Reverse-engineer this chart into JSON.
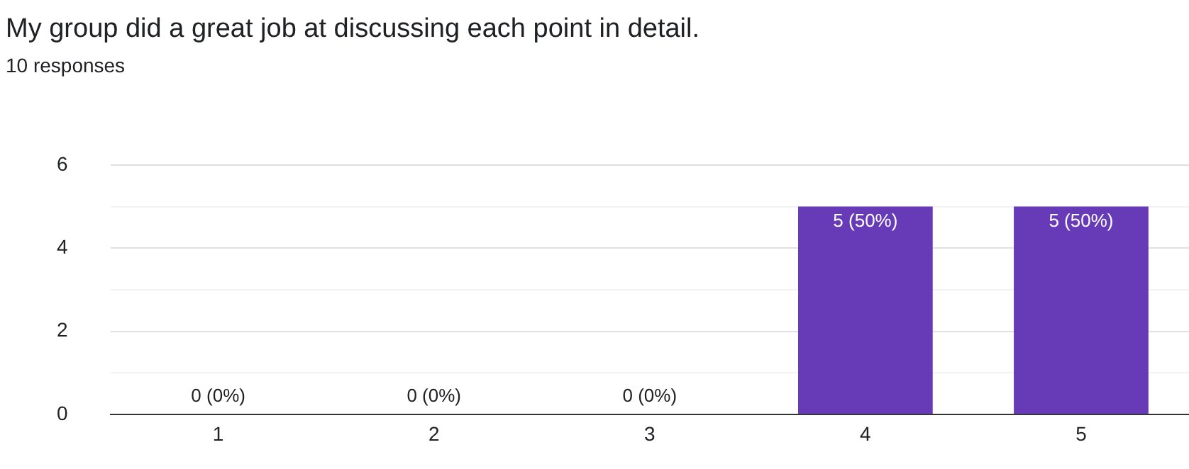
{
  "chart_data": {
    "type": "bar",
    "title": "My group did a great job at discussing each point in detail.",
    "subtitle": "10 responses",
    "categories": [
      "1",
      "2",
      "3",
      "4",
      "5"
    ],
    "values": [
      0,
      0,
      0,
      5,
      5
    ],
    "value_labels": [
      "0 (0%)",
      "0 (0%)",
      "0 (0%)",
      "5 (50%)",
      "5 (50%)"
    ],
    "color": "#673ab7",
    "ylim": [
      0,
      6
    ],
    "yticks": [
      0,
      {
        "value": 1,
        "label": null
      },
      2,
      {
        "value": 3,
        "label": null
      },
      4,
      {
        "value": 5,
        "label": null
      },
      6
    ],
    "grid": "y",
    "legend": false
  }
}
